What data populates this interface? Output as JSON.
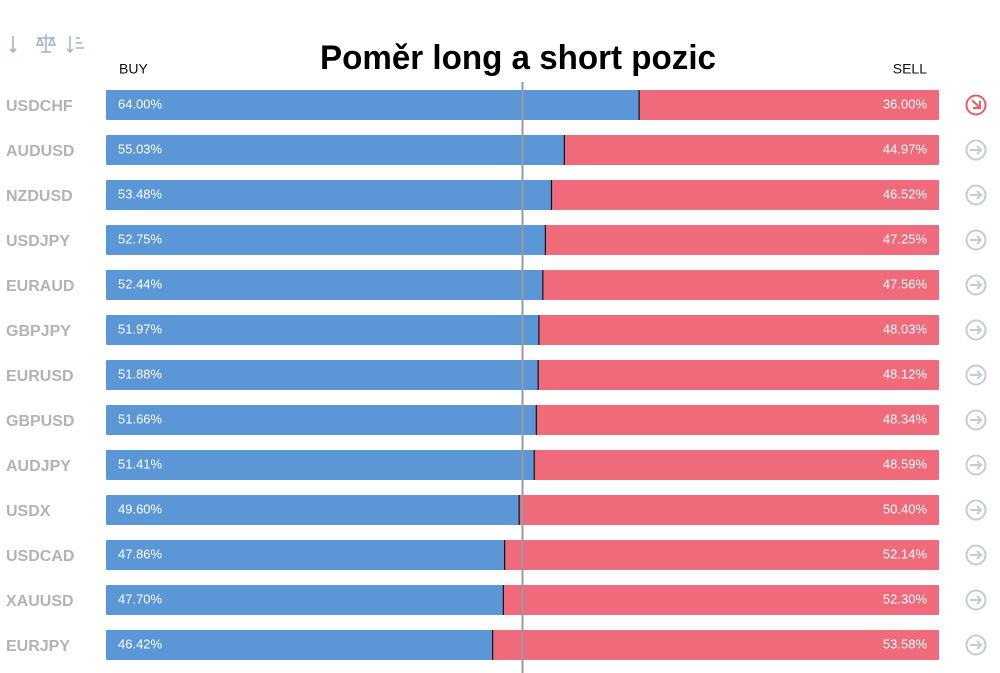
{
  "chart_data": {
    "type": "stacked-bar-horizontal",
    "title": "Poměr long a short pozic",
    "categories": [
      "USDCHF",
      "AUDUSD",
      "NZDUSD",
      "USDJPY",
      "EURAUD",
      "GBPJPY",
      "EURUSD",
      "GBPUSD",
      "AUDJPY",
      "USDX",
      "USDCAD",
      "XAUUSD",
      "EURJPY"
    ],
    "series": [
      {
        "name": "BUY",
        "color": "#5b97d6",
        "values": [
          64.0,
          55.03,
          53.48,
          52.75,
          52.44,
          51.97,
          51.88,
          51.66,
          51.41,
          49.6,
          47.86,
          47.7,
          46.42
        ],
        "value_labels": [
          "64.00%",
          "55.03%",
          "53.48%",
          "52.75%",
          "52.44%",
          "51.97%",
          "51.88%",
          "51.66%",
          "51.41%",
          "49.60%",
          "47.86%",
          "47.70%",
          "46.42%"
        ]
      },
      {
        "name": "SELL",
        "color": "#ef6b7b",
        "values": [
          36.0,
          44.97,
          46.52,
          47.25,
          47.56,
          48.03,
          48.12,
          48.34,
          48.59,
          50.4,
          52.14,
          52.3,
          53.58
        ],
        "value_labels": [
          "36.00%",
          "44.97%",
          "46.52%",
          "47.25%",
          "47.56%",
          "48.03%",
          "48.12%",
          "48.34%",
          "48.59%",
          "50.40%",
          "52.14%",
          "52.30%",
          "53.58%"
        ]
      }
    ],
    "xlim": [
      0,
      100
    ]
  }
}
